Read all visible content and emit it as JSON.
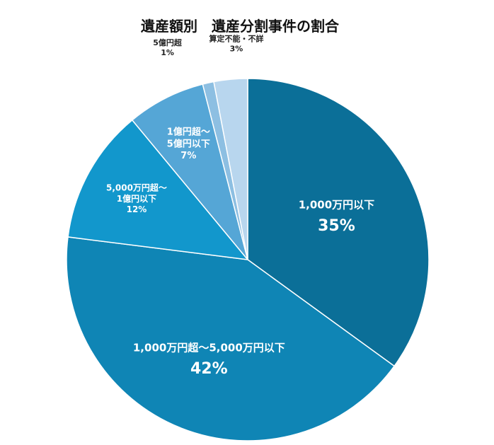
{
  "chart_data": {
    "type": "pie",
    "title": "遺産額別　遺産分割事件の割合",
    "slices": [
      {
        "label_lines": [
          "1,000万円以下"
        ],
        "value": 35,
        "value_label": "35%",
        "color": "#0b6f98"
      },
      {
        "label_lines": [
          "1,000万円超～5,000万円以下"
        ],
        "value": 42,
        "value_label": "42%",
        "color": "#0f85b5"
      },
      {
        "label_lines": [
          "5,000万円超～",
          "1億円以下"
        ],
        "value": 12,
        "value_label": "12%",
        "color": "#1297cc"
      },
      {
        "label_lines": [
          "1億円超～",
          "5億円以下"
        ],
        "value": 7,
        "value_label": "7%",
        "color": "#55a6d6"
      },
      {
        "label_lines": [
          "5億円超"
        ],
        "value": 1,
        "value_label": "1%",
        "color": "#8dbfe2"
      },
      {
        "label_lines": [
          "算定不能・不詳"
        ],
        "value": 3,
        "value_label": "3%",
        "color": "#b8d6ee"
      }
    ]
  }
}
